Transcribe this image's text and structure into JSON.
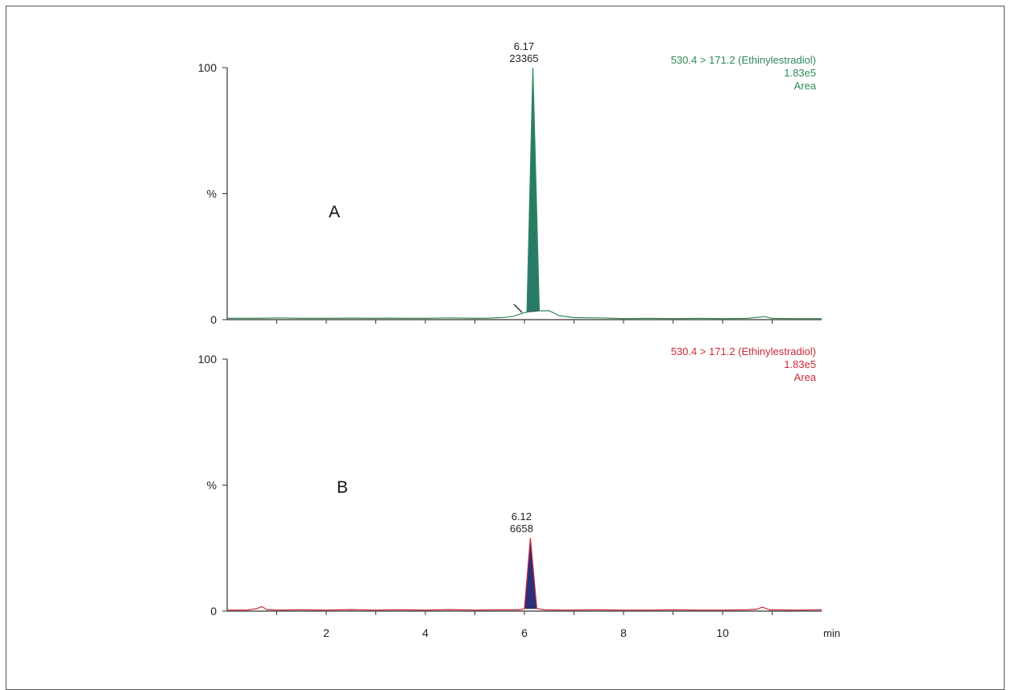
{
  "chart_data": [
    {
      "type": "line",
      "panel_label": "A",
      "x_unit": "min",
      "y_axis_label": "%",
      "yticks": [
        "0",
        "%",
        "100"
      ],
      "xticks": [
        "2",
        "4",
        "6",
        "8",
        "10"
      ],
      "xlim": [
        0,
        12
      ],
      "ylim": [
        0,
        100
      ],
      "header": [
        "530.4 > 171.2 (Ethinylestradiol)",
        "1.83e5",
        "Area"
      ],
      "color": "#2e8b57",
      "fill_color": "#2a7a6a",
      "peak": {
        "rt_label": "6.17",
        "area_label": "23365",
        "rt": 6.17,
        "height": 100
      },
      "series": [
        {
          "x": [
            0,
            0.5,
            0.8,
            1.0,
            1.5,
            2.0,
            2.5,
            3.0,
            3.3,
            3.6,
            4.0,
            4.5,
            5.0,
            5.3,
            5.6,
            5.8,
            5.95,
            6.05,
            6.17,
            6.3,
            6.5,
            6.7,
            7.0,
            7.5,
            8.0,
            8.5,
            9.0,
            9.5,
            10.0,
            10.5,
            10.85,
            11.0,
            11.5,
            12.0
          ],
          "y": [
            0.5,
            0.5,
            0.6,
            0.7,
            0.5,
            0.5,
            0.6,
            0.5,
            0.6,
            0.5,
            0.5,
            0.7,
            0.5,
            0.6,
            0.9,
            1.4,
            2.5,
            3.0,
            100,
            3.5,
            3.5,
            1.6,
            0.8,
            0.7,
            0.4,
            0.5,
            0.4,
            0.5,
            0.4,
            0.5,
            1.2,
            0.5,
            0.4,
            0.4
          ]
        }
      ]
    },
    {
      "type": "line",
      "panel_label": "B",
      "x_unit": "min",
      "y_axis_label": "%",
      "yticks": [
        "0",
        "%",
        "100"
      ],
      "xticks": [
        "2",
        "4",
        "6",
        "8",
        "10"
      ],
      "xlim": [
        0,
        12
      ],
      "ylim": [
        0,
        100
      ],
      "header": [
        "530.4 > 171.2 (Ethinylestradiol)",
        "1.83e5",
        "Area"
      ],
      "color": "#cc2a36",
      "fill_color": "#2b2f7a",
      "peak": {
        "rt_label": "6.12",
        "area_label": "6658",
        "rt": 6.12,
        "height": 29
      },
      "series": [
        {
          "x": [
            0,
            0.4,
            0.6,
            0.7,
            0.8,
            1.0,
            1.5,
            2.0,
            2.5,
            3.0,
            3.5,
            4.0,
            4.5,
            5.0,
            5.5,
            5.9,
            6.0,
            6.12,
            6.25,
            6.4,
            6.8,
            7.5,
            8.0,
            8.5,
            9.0,
            9.5,
            10.0,
            10.5,
            10.7,
            10.8,
            10.95,
            11.5,
            12.0
          ],
          "y": [
            0.4,
            0.4,
            1.0,
            1.8,
            0.6,
            0.4,
            0.5,
            0.4,
            0.6,
            0.4,
            0.5,
            0.4,
            0.6,
            0.4,
            0.5,
            0.5,
            1.0,
            29,
            1.0,
            0.5,
            0.4,
            0.5,
            0.4,
            0.4,
            0.5,
            0.4,
            0.4,
            0.5,
            0.8,
            1.6,
            0.5,
            0.4,
            0.5
          ]
        }
      ]
    }
  ]
}
